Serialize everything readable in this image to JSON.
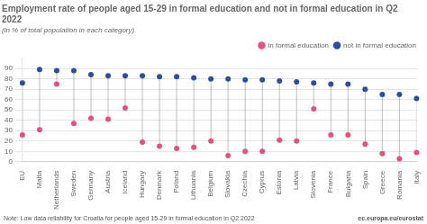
{
  "chart_data": {
    "type": "dumbbell",
    "title": "Employment rate of people aged 15-29 in formal education and not in formal education in Q2 2022",
    "subtitle": "(in % of total population in each category)",
    "categories": [
      "EU",
      "Malta",
      "Netherlands",
      "Sweden",
      "Germany",
      "Austria",
      "Iceland",
      "Hungary",
      "Denmark",
      "Poland",
      "Lithuania",
      "Belgium",
      "Slovakia",
      "Czechia",
      "Cyprus",
      "Estonia",
      "Latvia",
      "Slovenia",
      "France",
      "Bulgaria",
      "Spain",
      "Greece",
      "Romania",
      "Italy"
    ],
    "series": [
      {
        "name": "in formal education",
        "color": "#e8507a",
        "marker": "circle",
        "values": [
          26,
          31,
          75,
          37,
          42,
          41,
          52,
          19,
          15,
          13,
          14,
          20,
          6,
          10,
          10,
          21,
          20,
          51,
          26,
          26,
          17,
          8,
          3,
          9
        ]
      },
      {
        "name": "not in formal education",
        "color": "#2b4ea0",
        "marker": "circle",
        "values": [
          76,
          89,
          88,
          88,
          84,
          83,
          83,
          83,
          82,
          82,
          81,
          80,
          80,
          79,
          79,
          78,
          77,
          76,
          75,
          75,
          70,
          65,
          65,
          61
        ]
      }
    ],
    "ylim": [
      0,
      100
    ],
    "yticks": [
      0,
      10,
      20,
      30,
      40,
      50,
      60,
      70,
      80,
      90
    ],
    "grid": true,
    "legend": "upper right",
    "annotations": [
      "Note: Low data reliability for Croatia for people aged 15-29 in formal education in Q2 2022",
      "ec.europa.eu/eurostat"
    ]
  }
}
